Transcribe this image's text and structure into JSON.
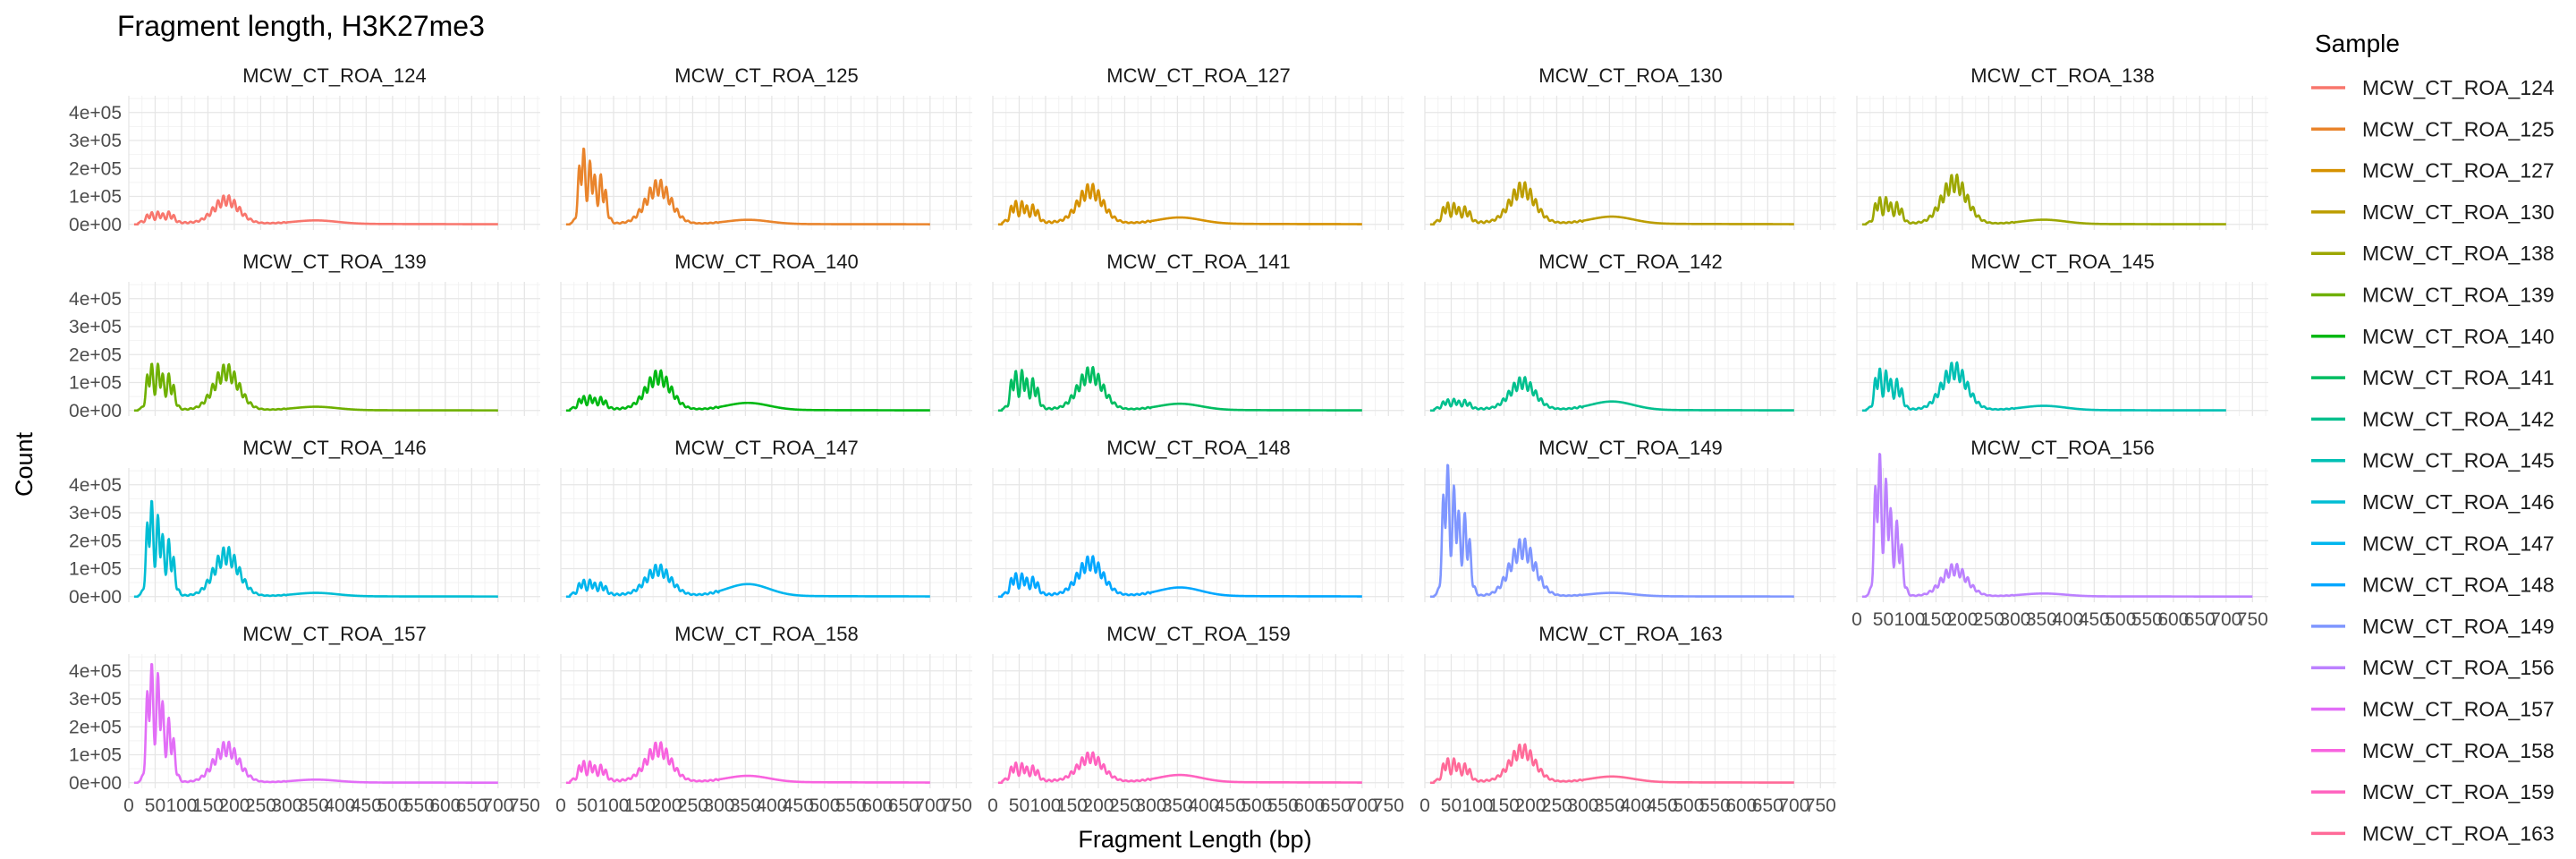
{
  "chart_data": {
    "type": "line",
    "title": "Fragment length, H3K27me3",
    "xlabel": "Fragment Length (bp)",
    "ylabel": "Count",
    "legend_title": "Sample",
    "legend_position": "right",
    "grid": true,
    "facet_layout": {
      "columns": 5,
      "rows": 4,
      "free_x": true
    },
    "x_ticks": [
      0,
      50,
      100,
      150,
      200,
      250,
      300,
      350,
      400,
      450,
      500,
      550,
      600,
      650,
      700,
      750
    ],
    "y_ticks": [
      0,
      100000,
      200000,
      300000,
      400000
    ],
    "y_tick_labels": [
      "0e+00",
      "1e+05",
      "2e+05",
      "3e+05",
      "4e+05"
    ],
    "xlim": [
      0,
      780
    ],
    "ylim": [
      -20000,
      460000
    ],
    "series": [
      {
        "name": "MCW_CT_ROA_124",
        "color": "#F8766D",
        "peaks": [
          28000,
          28000,
          28000,
          82000
        ],
        "nuc2": 12000,
        "tail": 8000,
        "x_max": 700
      },
      {
        "name": "MCW_CT_ROA_125",
        "color": "#E9842C",
        "peaks": [
          225000,
          170000,
          130000,
          130000
        ],
        "nuc2": 15000,
        "tail": 5000,
        "x_max": 700
      },
      {
        "name": "MCW_CT_ROA_127",
        "color": "#D69100",
        "peaks": [
          60000,
          55000,
          45000,
          115000
        ],
        "nuc2": 22000,
        "tail": 10000,
        "x_max": 700
      },
      {
        "name": "MCW_CT_ROA_130",
        "color": "#BC9D00",
        "peaks": [
          55000,
          50000,
          40000,
          120000
        ],
        "nuc2": 25000,
        "tail": 10000,
        "x_max": 700
      },
      {
        "name": "MCW_CT_ROA_138",
        "color": "#9CA700",
        "peaks": [
          75000,
          70000,
          55000,
          145000
        ],
        "nuc2": 15000,
        "tail": 6000,
        "x_max": 700
      },
      {
        "name": "MCW_CT_ROA_139",
        "color": "#6FB000",
        "peaks": [
          135000,
          125000,
          95000,
          135000
        ],
        "nuc2": 12000,
        "tail": 5000,
        "x_max": 700
      },
      {
        "name": "MCW_CT_ROA_140",
        "color": "#00B813",
        "peaks": [
          35000,
          35000,
          30000,
          115000
        ],
        "nuc2": 25000,
        "tail": 8000,
        "x_max": 700
      },
      {
        "name": "MCW_CT_ROA_141",
        "color": "#00BD61",
        "peaks": [
          110000,
          105000,
          80000,
          125000
        ],
        "nuc2": 22000,
        "tail": 8000,
        "x_max": 700
      },
      {
        "name": "MCW_CT_ROA_142",
        "color": "#00C08E",
        "peaks": [
          25000,
          25000,
          22000,
          95000
        ],
        "nuc2": 30000,
        "tail": 8000,
        "x_max": 700
      },
      {
        "name": "MCW_CT_ROA_145",
        "color": "#00C0B4",
        "peaks": [
          120000,
          105000,
          80000,
          140000
        ],
        "nuc2": 15000,
        "tail": 6000,
        "x_max": 700
      },
      {
        "name": "MCW_CT_ROA_146",
        "color": "#00BDD4",
        "peaks": [
          285000,
          220000,
          150000,
          145000
        ],
        "nuc2": 12000,
        "tail": 5000,
        "x_max": 700
      },
      {
        "name": "MCW_CT_ROA_147",
        "color": "#00B5EE",
        "peaks": [
          40000,
          38000,
          30000,
          90000
        ],
        "nuc2": 42000,
        "tail": 10000,
        "x_max": 700
      },
      {
        "name": "MCW_CT_ROA_148",
        "color": "#00A7FF",
        "peaks": [
          60000,
          55000,
          45000,
          115000
        ],
        "nuc2": 30000,
        "tail": 10000,
        "x_max": 700
      },
      {
        "name": "MCW_CT_ROA_149",
        "color": "#7F96FF",
        "peaks": [
          395000,
          300000,
          220000,
          170000
        ],
        "nuc2": 12000,
        "tail": 5000,
        "x_max": 700
      },
      {
        "name": "MCW_CT_ROA_156",
        "color": "#BC81FF",
        "peaks": [
          430000,
          320000,
          200000,
          95000
        ],
        "nuc2": 10000,
        "tail": 4000,
        "x_max": 750
      },
      {
        "name": "MCW_CT_ROA_157",
        "color": "#E26EF7",
        "peaks": [
          355000,
          300000,
          170000,
          120000
        ],
        "nuc2": 10000,
        "tail": 4000,
        "x_max": 700
      },
      {
        "name": "MCW_CT_ROA_158",
        "color": "#F863DF",
        "peaks": [
          55000,
          50000,
          40000,
          115000
        ],
        "nuc2": 22000,
        "tail": 10000,
        "x_max": 700
      },
      {
        "name": "MCW_CT_ROA_159",
        "color": "#FF62BF",
        "peaks": [
          50000,
          45000,
          38000,
          85000
        ],
        "nuc2": 25000,
        "tail": 10000,
        "x_max": 700
      },
      {
        "name": "MCW_CT_ROA_163",
        "color": "#FF6A98",
        "peaks": [
          65000,
          60000,
          45000,
          110000
        ],
        "nuc2": 20000,
        "tail": 8000,
        "x_max": 700
      }
    ]
  }
}
